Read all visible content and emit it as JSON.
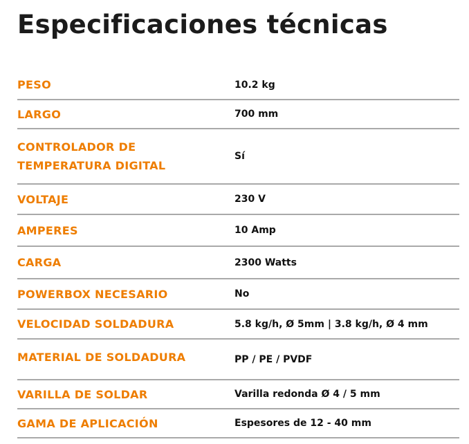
{
  "title": "Especificaciones técnicas",
  "accent_color": "#ee7d00",
  "specs": [
    {
      "label": "PESO",
      "value": "10.2 kg"
    },
    {
      "label": "LARGO",
      "value": "700 mm"
    },
    {
      "label": "CONTROLADOR DE TEMPERATURA DIGITAL",
      "value": "Sí"
    },
    {
      "label": "VOLTAJE",
      "value": "230 V"
    },
    {
      "label": "AMPERES",
      "value": "10 Amp"
    },
    {
      "label": "CARGA",
      "value": "2300 Watts"
    },
    {
      "label": "POWERBOX NECESARIO",
      "value": "No"
    },
    {
      "label": "VELOCIDAD SOLDADURA",
      "value": "5.8 kg/h, Ø 5mm | 3.8 kg/h, Ø 4 mm"
    },
    {
      "label": "MATERIAL DE SOLDADURA",
      "value": "PP / PE / PVDF"
    },
    {
      "label": "VARILLA DE SOLDAR",
      "value": "Varilla redonda Ø 4 / 5 mm"
    },
    {
      "label": "GAMA DE APLICACIÓN",
      "value": "Espesores de 12 - 40 mm"
    }
  ]
}
